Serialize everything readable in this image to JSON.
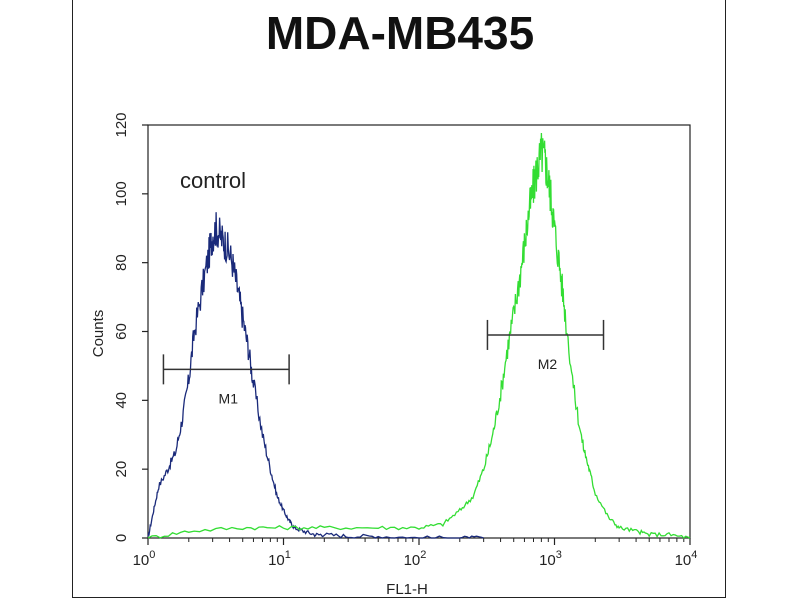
{
  "chart_data": {
    "type": "line",
    "title": "MDA-MB435",
    "xlabel": "FL1-H",
    "ylabel": "Counts",
    "x_scale": "log",
    "xlim": [
      1,
      10000
    ],
    "ylim": [
      0,
      120
    ],
    "x_ticks": [
      {
        "base": "10",
        "exp": "0"
      },
      {
        "base": "10",
        "exp": "1"
      },
      {
        "base": "10",
        "exp": "2"
      },
      {
        "base": "10",
        "exp": "3"
      },
      {
        "base": "10",
        "exp": "4"
      }
    ],
    "y_ticks": [
      "0",
      "20",
      "40",
      "60",
      "80",
      "100",
      "120"
    ],
    "annotation": "control",
    "series": [
      {
        "color": "#1a2a7a",
        "x": [
          1.0,
          1.1,
          1.2,
          1.4,
          1.6,
          1.8,
          2.0,
          2.2,
          2.5,
          2.8,
          3.0,
          3.2,
          3.5,
          3.8,
          4.2,
          4.6,
          5.0,
          5.5,
          6.0,
          7.0,
          8.0,
          9.0,
          10,
          11,
          12,
          14,
          17,
          20,
          30,
          50,
          100,
          200,
          300
        ],
        "y": [
          0,
          8,
          15,
          20,
          25,
          35,
          46,
          60,
          72,
          82,
          88,
          90,
          87,
          85,
          80,
          72,
          64,
          55,
          45,
          30,
          20,
          12,
          8,
          5,
          3,
          2,
          1,
          1,
          0.5,
          0.5,
          0,
          0,
          0
        ]
      },
      {
        "color": "#33dd33",
        "x": [
          1.0,
          2,
          5,
          10,
          20,
          50,
          100,
          150,
          200,
          250,
          300,
          350,
          400,
          450,
          500,
          550,
          600,
          650,
          700,
          750,
          800,
          850,
          900,
          950,
          1000,
          1100,
          1200,
          1400,
          1600,
          1800,
          2000,
          2500,
          3000,
          4000,
          5000,
          7000,
          10000
        ],
        "y": [
          0,
          2,
          3,
          3,
          3,
          3,
          3,
          4,
          8,
          12,
          20,
          30,
          42,
          55,
          65,
          75,
          85,
          95,
          102,
          108,
          112,
          110,
          104,
          98,
          90,
          78,
          65,
          42,
          28,
          20,
          13,
          6,
          3,
          2,
          1,
          1,
          0
        ]
      }
    ],
    "markers": [
      {
        "label": "M1",
        "x_start": 1.3,
        "x_end": 11,
        "y": 49
      },
      {
        "label": "M2",
        "x_start": 320,
        "x_end": 2300,
        "y": 59
      }
    ]
  }
}
